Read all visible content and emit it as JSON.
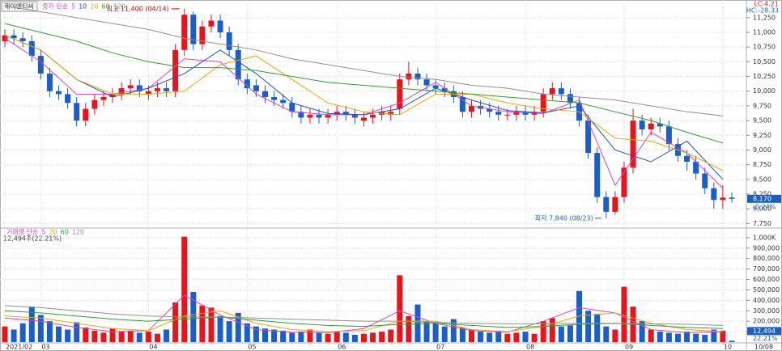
{
  "chart_data": [
    {
      "type": "candlestick",
      "title": "제이엔티씨",
      "legend_title": "종가 단순",
      "info_lc": "LC:4.21",
      "info_hc": "HC:-28.33",
      "high_note": "최고 11,400 (04/14)",
      "low_note": "최저 7,840 (08/23)",
      "current_label": "8,170",
      "change_label": "-0.24%",
      "up_color": "#e8141c",
      "down_color": "#1a5fc8",
      "ylim": [
        7700,
        11550
      ],
      "yticks": [
        {
          "value": 7750,
          "label": "7,750"
        },
        {
          "value": 8000,
          "label": "8,000"
        },
        {
          "value": 8250,
          "label": "8,250"
        },
        {
          "value": 8500,
          "label": "8,500"
        },
        {
          "value": 8750,
          "label": "8,750"
        },
        {
          "value": 9000,
          "label": "9,000"
        },
        {
          "value": 9250,
          "label": "9,250"
        },
        {
          "value": 9500,
          "label": "9,500"
        },
        {
          "value": 9750,
          "label": "9,750"
        },
        {
          "value": 10000,
          "label": "10,000"
        },
        {
          "value": 10250,
          "label": "10,250"
        },
        {
          "value": 10500,
          "label": "10,500"
        },
        {
          "value": 10750,
          "label": "10,750"
        },
        {
          "value": 11000,
          "label": "11,000"
        },
        {
          "value": 11250,
          "label": "11,250"
        }
      ],
      "open": [
        10850,
        10950,
        10900,
        10850,
        10600,
        10300,
        10000,
        9950,
        9800,
        9500,
        9700,
        9850,
        9900,
        9950,
        10050,
        10100,
        9950,
        10000,
        10050,
        10000,
        10700,
        11300,
        10800,
        11100,
        11200,
        11000,
        10700,
        10200,
        10100,
        10000,
        9900,
        9850,
        9800,
        9650,
        9550,
        9600,
        9550,
        9600,
        9650,
        9600,
        9500,
        9550,
        9600,
        9600,
        9700,
        10200,
        10300,
        10200,
        10100,
        10050,
        10000,
        9900,
        9650,
        9750,
        9700,
        9650,
        9600,
        9600,
        9650,
        9600,
        9650,
        9950,
        10050,
        9950,
        9800,
        9500,
        8950,
        8200,
        7950,
        8200,
        8700,
        9500,
        9350,
        9450,
        9400,
        9100,
        8900,
        8800,
        8600,
        8350,
        8150,
        8190
      ],
      "high": [
        11050,
        11050,
        11000,
        10950,
        10700,
        10400,
        10100,
        10050,
        9900,
        9800,
        9950,
        10000,
        10050,
        10150,
        10200,
        10200,
        10100,
        10150,
        10150,
        10800,
        11400,
        11350,
        11200,
        11300,
        11300,
        11100,
        10800,
        10300,
        10200,
        10100,
        10000,
        9950,
        9900,
        9750,
        9700,
        9700,
        9700,
        9750,
        9750,
        9700,
        9650,
        9700,
        9750,
        9750,
        10300,
        10500,
        10400,
        10300,
        10200,
        10150,
        10100,
        10000,
        9850,
        9850,
        9800,
        9750,
        9700,
        9750,
        9750,
        9750,
        10050,
        10150,
        10150,
        10050,
        9900,
        9600,
        9050,
        8300,
        8300,
        8800,
        9700,
        9600,
        9550,
        9550,
        9500,
        9200,
        9000,
        8900,
        8700,
        8450,
        8400,
        8280
      ],
      "low": [
        10750,
        10800,
        10750,
        10500,
        10200,
        9900,
        9850,
        9700,
        9400,
        9400,
        9600,
        9750,
        9800,
        9850,
        9950,
        9900,
        9850,
        9900,
        9900,
        9900,
        10600,
        10700,
        10700,
        11000,
        10900,
        10600,
        10100,
        9950,
        9900,
        9800,
        9750,
        9700,
        9550,
        9450,
        9450,
        9450,
        9450,
        9500,
        9500,
        9450,
        9400,
        9450,
        9500,
        9500,
        9600,
        10100,
        10100,
        10000,
        9950,
        9900,
        9800,
        9550,
        9550,
        9600,
        9550,
        9500,
        9500,
        9500,
        9500,
        9500,
        9550,
        9850,
        9850,
        9700,
        9400,
        8850,
        8100,
        7840,
        7900,
        8100,
        8600,
        9250,
        9250,
        9300,
        9000,
        8800,
        8650,
        8500,
        8250,
        8000,
        8000,
        8100
      ],
      "close": [
        10950,
        10900,
        10850,
        10600,
        10300,
        10000,
        9950,
        9800,
        9500,
        9700,
        9850,
        9900,
        9950,
        10050,
        10100,
        10000,
        10000,
        10050,
        10000,
        10700,
        11300,
        10800,
        11100,
        11200,
        11000,
        10700,
        10200,
        10050,
        10000,
        9900,
        9850,
        9800,
        9650,
        9550,
        9600,
        9550,
        9600,
        9650,
        9600,
        9550,
        9550,
        9600,
        9650,
        9650,
        10200,
        10300,
        10200,
        10100,
        10050,
        10000,
        9900,
        9650,
        9750,
        9700,
        9650,
        9600,
        9600,
        9650,
        9600,
        9650,
        9950,
        10050,
        9950,
        9800,
        9500,
        8950,
        8200,
        7950,
        8200,
        8700,
        9500,
        9350,
        9450,
        9400,
        9100,
        8900,
        8800,
        8600,
        8350,
        8150,
        8190,
        8170
      ],
      "ma_x": [
        0,
        4,
        8,
        12,
        16,
        20,
        24,
        28,
        32,
        36,
        40,
        44,
        48,
        52,
        56,
        60,
        64,
        68,
        72,
        76,
        80
      ],
      "series": [
        {
          "name": "5",
          "color": "#e040c0",
          "values": [
            10900,
            10500,
            9950,
            9950,
            10050,
            10550,
            10500,
            9950,
            9650,
            9600,
            9600,
            9800,
            10150,
            9750,
            9650,
            9620,
            9850,
            8400,
            9300,
            8950,
            8350
          ]
        },
        {
          "name": "10",
          "color": "#2050d0",
          "values": [
            10950,
            10700,
            10200,
            9900,
            10050,
            10300,
            10700,
            10300,
            9800,
            9620,
            9600,
            9700,
            10050,
            9850,
            9670,
            9630,
            9750,
            9000,
            8800,
            9150,
            8500
          ]
        },
        {
          "name": "20",
          "color": "#e8a800",
          "values": [
            10950,
            10700,
            10200,
            9950,
            9950,
            10000,
            10450,
            10600,
            10200,
            9800,
            9650,
            9600,
            9950,
            9950,
            9800,
            9700,
            9650,
            9200,
            9150,
            8950,
            8650
          ]
        },
        {
          "name": "60",
          "color": "#30a030",
          "values": [
            11150,
            11000,
            10850,
            10650,
            10500,
            10400,
            10400,
            10350,
            10250,
            10150,
            10100,
            10050,
            10000,
            9950,
            9900,
            9850,
            9800,
            9650,
            9500,
            9300,
            9120
          ]
        },
        {
          "name": "120",
          "color": "#909090",
          "values": [
            11450,
            11350,
            11250,
            11150,
            11050,
            10900,
            10800,
            10700,
            10550,
            10450,
            10350,
            10250,
            10200,
            10100,
            10050,
            9950,
            9900,
            9850,
            9750,
            9650,
            9580
          ]
        }
      ]
    },
    {
      "type": "bar",
      "legend_title": "거래량 단순",
      "info": "12,494주(22.21%)",
      "current_label": "12,494",
      "ratio_label": "22.21%",
      "ylim": [
        0,
        1100000
      ],
      "yticks": [
        {
          "value": 100000,
          "label": "100,000"
        },
        {
          "value": 200000,
          "label": "200,000"
        },
        {
          "value": 300000,
          "label": "300,000"
        },
        {
          "value": 400000,
          "label": "400,000"
        },
        {
          "value": 500000,
          "label": "500,000"
        },
        {
          "value": 600000,
          "label": "600,000"
        },
        {
          "value": 700000,
          "label": "700,000"
        },
        {
          "value": 800000,
          "label": "800,000"
        },
        {
          "value": 900000,
          "label": "900,000"
        },
        {
          "value": 1000000,
          "label": "1,000K"
        }
      ],
      "xticks": [
        {
          "value": 0,
          "label": "2021/02"
        },
        {
          "value": 4,
          "label": "03"
        },
        {
          "value": 16,
          "label": "04"
        },
        {
          "value": 27,
          "label": "05"
        },
        {
          "value": 37,
          "label": "06"
        },
        {
          "value": 48,
          "label": "07"
        },
        {
          "value": 58,
          "label": "08"
        },
        {
          "value": 69,
          "label": "09"
        },
        {
          "value": 80,
          "label": "10"
        },
        {
          "value": 81,
          "label": "10/08"
        }
      ],
      "values": [
        150000,
        120000,
        180000,
        340000,
        260000,
        200000,
        150000,
        120000,
        190000,
        140000,
        110000,
        90000,
        130000,
        100000,
        110000,
        90000,
        100000,
        80000,
        120000,
        380000,
        1010000,
        480000,
        350000,
        330000,
        250000,
        200000,
        280000,
        180000,
        150000,
        130000,
        120000,
        110000,
        90000,
        100000,
        120000,
        90000,
        80000,
        100000,
        90000,
        70000,
        80000,
        90000,
        100000,
        120000,
        640000,
        250000,
        360000,
        200000,
        180000,
        150000,
        220000,
        140000,
        120000,
        100000,
        90000,
        110000,
        80000,
        90000,
        100000,
        80000,
        200000,
        230000,
        150000,
        160000,
        490000,
        300000,
        270000,
        150000,
        120000,
        530000,
        340000,
        200000,
        120000,
        100000,
        90000,
        80000,
        100000,
        80000,
        70000,
        120000,
        110000,
        12494
      ],
      "series": [
        {
          "name": "5",
          "color": "#e040c0",
          "values": [
            230000,
            200000,
            140000,
            100000,
            110000,
            450000,
            260000,
            120000,
            95000,
            90000,
            130000,
            300000,
            180000,
            110000,
            95000,
            200000,
            330000,
            280000,
            120000,
            90000,
            100000
          ]
        },
        {
          "name": "20",
          "color": "#e8a800",
          "values": [
            250000,
            230000,
            180000,
            130000,
            110000,
            250000,
            300000,
            180000,
            120000,
            100000,
            110000,
            200000,
            200000,
            120000,
            100000,
            150000,
            250000,
            280000,
            180000,
            120000,
            100000
          ]
        },
        {
          "name": "60",
          "color": "#30a030",
          "values": [
            300000,
            280000,
            250000,
            220000,
            200000,
            220000,
            240000,
            210000,
            180000,
            160000,
            150000,
            170000,
            180000,
            160000,
            140000,
            150000,
            170000,
            180000,
            160000,
            140000,
            130000
          ]
        },
        {
          "name": "120",
          "color": "#909090",
          "values": [
            350000,
            330000,
            300000,
            270000,
            250000,
            240000,
            240000,
            230000,
            220000,
            210000,
            200000,
            200000,
            190000,
            180000,
            175000,
            175000,
            180000,
            180000,
            175000,
            170000,
            160000
          ]
        }
      ]
    }
  ]
}
